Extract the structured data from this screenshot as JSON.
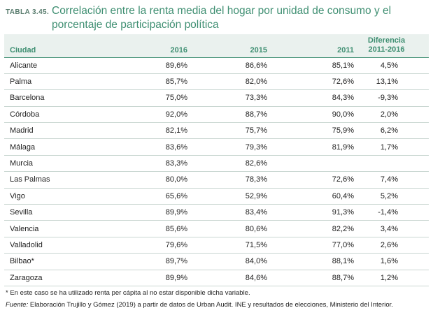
{
  "table_label": "TABLA 3.45.",
  "title": "Correlación entre la renta media del hogar por unidad de consumo y el porcentaje de participación política",
  "headers": {
    "city": "Ciudad",
    "y2016": "2016",
    "y2015": "2015",
    "y2011": "2011",
    "diff_line1": "Diferencia",
    "diff_line2": "2011-2016"
  },
  "rows": [
    {
      "city": "Alicante",
      "v2016": "89,6%",
      "v2015": "86,6%",
      "v2011": "85,1%",
      "diff": "4,5%"
    },
    {
      "city": "Palma",
      "v2016": "85,7%",
      "v2015": "82,0%",
      "v2011": "72,6%",
      "diff": "13,1%"
    },
    {
      "city": "Barcelona",
      "v2016": "75,0%",
      "v2015": "73,3%",
      "v2011": "84,3%",
      "diff": "-9,3%"
    },
    {
      "city": "Córdoba",
      "v2016": "92,0%",
      "v2015": "88,7%",
      "v2011": "90,0%",
      "diff": "2,0%"
    },
    {
      "city": "Madrid",
      "v2016": "82,1%",
      "v2015": "75,7%",
      "v2011": "75,9%",
      "diff": "6,2%"
    },
    {
      "city": "Málaga",
      "v2016": "83,6%",
      "v2015": "79,3%",
      "v2011": "81,9%",
      "diff": "1,7%"
    },
    {
      "city": "Murcia",
      "v2016": "83,3%",
      "v2015": "82,6%",
      "v2011": "",
      "diff": ""
    },
    {
      "city": "Las Palmas",
      "v2016": "80,0%",
      "v2015": "78,3%",
      "v2011": "72,6%",
      "diff": "7,4%"
    },
    {
      "city": "Vigo",
      "v2016": "65,6%",
      "v2015": "52,9%",
      "v2011": "60,4%",
      "diff": "5,2%"
    },
    {
      "city": "Sevilla",
      "v2016": "89,9%",
      "v2015": "83,4%",
      "v2011": "91,3%",
      "diff": "-1,4%"
    },
    {
      "city": "Valencia",
      "v2016": "85,6%",
      "v2015": "80,6%",
      "v2011": "82,2%",
      "diff": "3,4%"
    },
    {
      "city": "Valladolid",
      "v2016": "79,6%",
      "v2015": "71,5%",
      "v2011": "77,0%",
      "diff": "2,6%"
    },
    {
      "city": "Bilbao*",
      "v2016": "89,7%",
      "v2015": "84,0%",
      "v2011": "88,1%",
      "diff": "1,6%"
    },
    {
      "city": "Zaragoza",
      "v2016": "89,9%",
      "v2015": "84,6%",
      "v2011": "88,7%",
      "diff": "1,2%"
    }
  ],
  "footnote": "* En este caso se ha utilizado renta per cápita al no estar disponible dicha variable.",
  "source_label": "Fuente:",
  "source_text": " Elaboración Trujillo y Gómez (2019) a partir de datos de Urban Audit. INE y resultados de elecciones, Ministerio del Interior.",
  "colors": {
    "accent": "#3f8f72",
    "header_bg": "#eaf1ee"
  }
}
